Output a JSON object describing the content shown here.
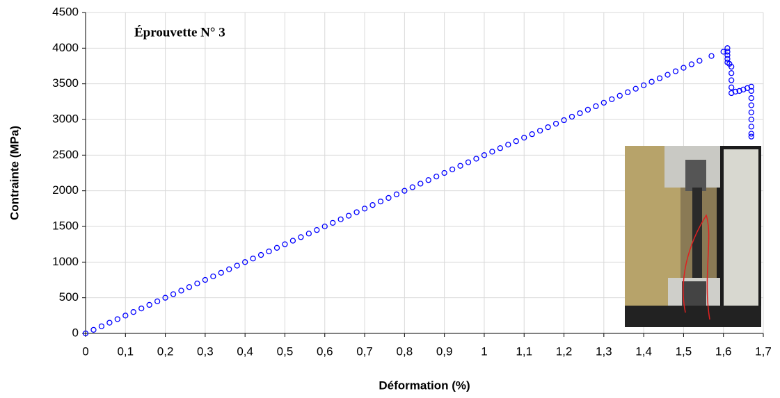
{
  "chart_data": {
    "type": "scatter",
    "annotation": "Éprouvette N° 3",
    "x_label": "Déformation (%)",
    "y_label": "Contrainte (MPa)",
    "xlim": [
      0,
      1.7
    ],
    "ylim": [
      0,
      4500
    ],
    "xticks": [
      0,
      {
        "value": 0.1,
        "label": "0,1"
      },
      {
        "value": 0.2,
        "label": "0,2"
      },
      {
        "value": 0.3,
        "label": "0,3"
      },
      {
        "value": 0.4,
        "label": "0,4"
      },
      {
        "value": 0.5,
        "label": "0,5"
      },
      {
        "value": 0.6,
        "label": "0,6"
      },
      {
        "value": 0.7,
        "label": "0,7"
      },
      {
        "value": 0.8,
        "label": "0,8"
      },
      {
        "value": 0.9,
        "label": "0,9"
      },
      1,
      {
        "value": 1.1,
        "label": "1,1"
      },
      {
        "value": 1.2,
        "label": "1,2"
      },
      {
        "value": 1.3,
        "label": "1,3"
      },
      {
        "value": 1.4,
        "label": "1,4"
      },
      {
        "value": 1.5,
        "label": "1,5"
      },
      {
        "value": 1.6,
        "label": "1,6"
      },
      {
        "value": 1.7,
        "label": "1,7"
      }
    ],
    "yticks": [
      0,
      500,
      1000,
      1500,
      2000,
      2500,
      3000,
      3500,
      4000,
      4500
    ],
    "grid": true,
    "color": "#0000ff",
    "x": [
      0,
      0.02,
      0.04,
      0.06,
      0.08,
      0.1,
      0.12,
      0.14,
      0.16,
      0.18,
      0.2,
      0.22,
      0.24,
      0.26,
      0.28,
      0.3,
      0.32,
      0.34,
      0.36,
      0.38,
      0.4,
      0.42,
      0.44,
      0.46,
      0.48,
      0.5,
      0.52,
      0.54,
      0.56,
      0.58,
      0.6,
      0.62,
      0.64,
      0.66,
      0.68,
      0.7,
      0.72,
      0.74,
      0.76,
      0.78,
      0.8,
      0.82,
      0.84,
      0.86,
      0.88,
      0.9,
      0.92,
      0.94,
      0.96,
      0.98,
      1,
      1.02,
      1.04,
      1.06,
      1.08,
      1.1,
      1.12,
      1.14,
      1.16,
      1.18,
      1.2,
      1.22,
      1.24,
      1.26,
      1.28,
      1.3,
      1.32,
      1.34,
      1.36,
      1.38,
      1.4,
      1.42,
      1.44,
      1.46,
      1.48,
      1.5,
      1.52,
      1.54,
      1.57,
      1.6,
      1.61,
      1.61,
      1.61,
      1.61,
      1.61,
      1.615,
      1.62,
      1.62,
      1.62,
      1.62,
      1.62,
      1.63,
      1.64,
      1.65,
      1.66,
      1.67,
      1.67,
      1.67,
      1.67,
      1.67,
      1.67,
      1.67,
      1.67,
      1.67
    ],
    "values": [
      0,
      50,
      100,
      150,
      200,
      250,
      300,
      350,
      400,
      450,
      500,
      550,
      600,
      650,
      700,
      750,
      800,
      850,
      900,
      950,
      1000,
      1050,
      1100,
      1150,
      1200,
      1250,
      1300,
      1350,
      1400,
      1450,
      1500,
      1550,
      1600,
      1650,
      1700,
      1750,
      1800,
      1850,
      1900,
      1950,
      2000,
      2050,
      2100,
      2150,
      2200,
      2250,
      2300,
      2350,
      2400,
      2450,
      2500,
      2549,
      2598,
      2647,
      2696,
      2745,
      2794,
      2843,
      2892,
      2941,
      2990,
      3039,
      3088,
      3137,
      3186,
      3235,
      3284,
      3333,
      3382,
      3431,
      3480,
      3529,
      3578,
      3627,
      3676,
      3725,
      3774,
      3823,
      3890,
      3950,
      4000,
      3950,
      3900,
      3850,
      3800,
      3780,
      3740,
      3650,
      3550,
      3450,
      3370,
      3390,
      3400,
      3420,
      3440,
      3460,
      3400,
      3300,
      3200,
      3100,
      3000,
      2900,
      2800,
      2760
    ]
  }
}
